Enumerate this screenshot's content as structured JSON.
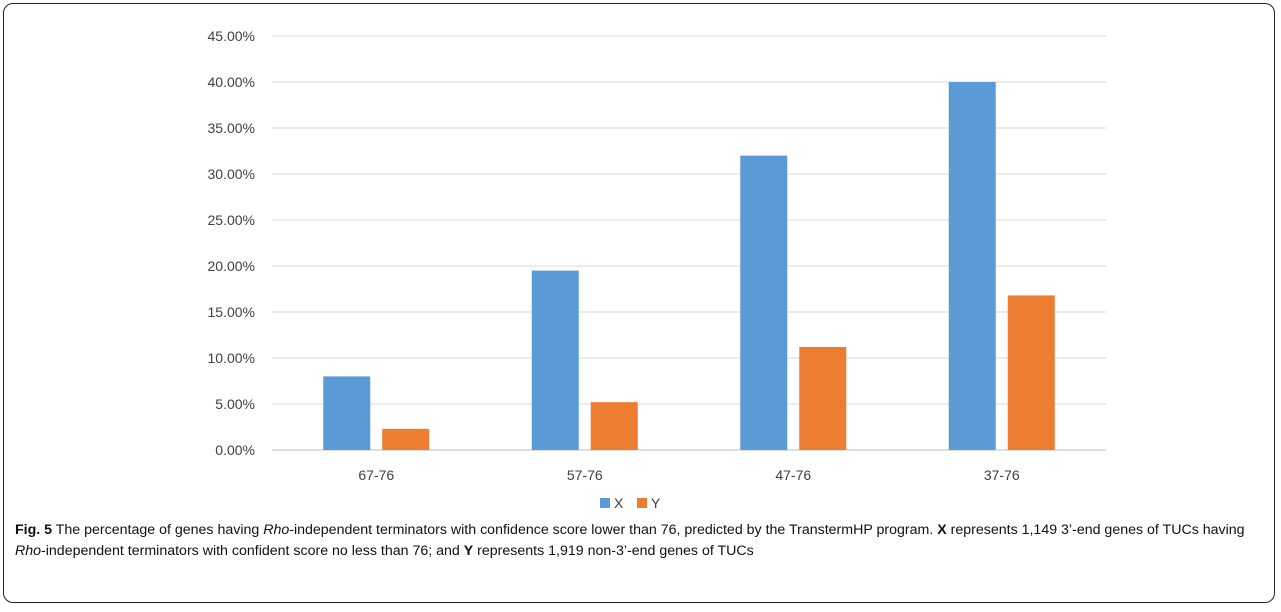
{
  "chart_data": {
    "type": "bar",
    "categories": [
      "67-76",
      "57-76",
      "47-76",
      "37-76"
    ],
    "series": [
      {
        "name": "X",
        "color": "#5b9bd5",
        "values": [
          8.0,
          19.5,
          32.0,
          40.0
        ]
      },
      {
        "name": "Y",
        "color": "#ed7d31",
        "values": [
          2.3,
          5.2,
          11.2,
          16.8
        ]
      }
    ],
    "ylim": [
      0,
      45
    ],
    "yticks": [
      "0.00%",
      "5.00%",
      "10.00%",
      "15.00%",
      "20.00%",
      "25.00%",
      "30.00%",
      "35.00%",
      "40.00%",
      "45.00%"
    ],
    "ytick_values": [
      0,
      5,
      10,
      15,
      20,
      25,
      30,
      35,
      40,
      45
    ],
    "grid": true,
    "legend": "bottom-center"
  },
  "caption": {
    "fig_label": "Fig. 5",
    "text_1": " The percentage of genes having ",
    "rho_1": "Rho",
    "text_2": "-independent terminators with confidence score lower than 76, predicted by the TranstermHP program. ",
    "x_label": "X",
    "text_3": " represents 1,149 3’-end genes of TUCs having ",
    "rho_2": "Rho",
    "text_4": "-independent terminators with confident score no less than 76; and ",
    "y_label": "Y",
    "text_5": " represents 1,919 non-3’-end genes of TUCs"
  }
}
